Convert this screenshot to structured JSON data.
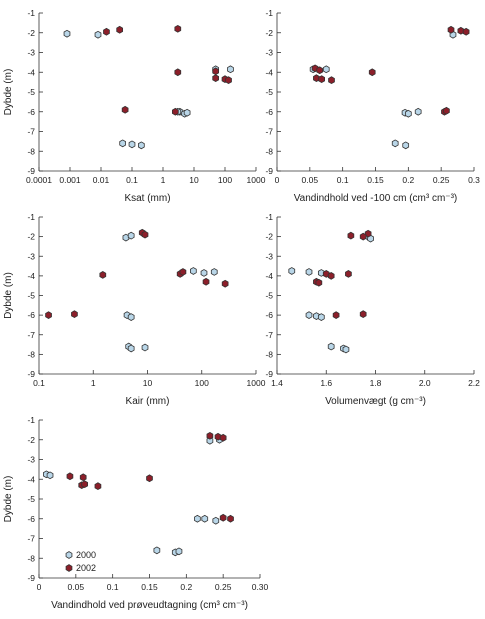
{
  "colors": {
    "2000": "#b9d6e8",
    "2002": "#8c1f2a",
    "outline": "#333333"
  },
  "chart_data": [
    {
      "type": "scatter",
      "xlabel": "Ksat (mm)",
      "ylabel": "Dybde (m)",
      "xscale": "log",
      "xlim": [
        0.0001,
        1000
      ],
      "ylim": [
        -9,
        -1
      ],
      "xtick_labels": [
        "0.0001",
        "0.001",
        "0.01",
        "0.1",
        "1",
        "10",
        "100",
        "1000"
      ],
      "ytick_labels": [
        "-1",
        "-2",
        "-3",
        "-4",
        "-5",
        "-6",
        "-7",
        "-8",
        "-9"
      ],
      "legend": false,
      "series": [
        {
          "name": "2000",
          "x": [
            0.0008,
            0.008,
            0.05,
            0.1,
            0.2,
            3.5,
            5,
            50,
            150,
            3,
            6
          ],
          "y": [
            -2.05,
            -2.1,
            -7.6,
            -7.65,
            -7.7,
            -6,
            -6.1,
            -3.85,
            -3.85,
            -6,
            -6.05
          ]
        },
        {
          "name": "2002",
          "x": [
            0.015,
            0.04,
            3,
            3,
            50,
            50,
            100,
            130,
            0.06,
            2.5
          ],
          "y": [
            -1.95,
            -1.85,
            -1.8,
            -4,
            -3.95,
            -4.3,
            -4.35,
            -4.4,
            -5.9,
            -6
          ]
        }
      ]
    },
    {
      "type": "scatter",
      "xlabel": "Vandindhold ved -100 cm (cm³ cm⁻³)",
      "ylabel": "",
      "xscale": "linear",
      "xlim": [
        0,
        0.3
      ],
      "ylim": [
        -9,
        -1
      ],
      "xtick_labels": [
        "0",
        "0.05",
        "0.1",
        "0.15",
        "0.2",
        "0.25",
        "0.3"
      ],
      "ytick_labels": [
        "-1",
        "-2",
        "-3",
        "-4",
        "-5",
        "-6",
        "-7",
        "-8",
        "-9"
      ],
      "legend": false,
      "series": [
        {
          "name": "2000",
          "x": [
            0.268,
            0.055,
            0.075,
            0.195,
            0.2,
            0.215,
            0.18,
            0.196
          ],
          "y": [
            -2.1,
            -3.85,
            -3.85,
            -6.05,
            -6.1,
            -6,
            -7.6,
            -7.7
          ]
        },
        {
          "name": "2002",
          "x": [
            0.265,
            0.28,
            0.288,
            0.058,
            0.065,
            0.06,
            0.068,
            0.083,
            0.145,
            0.255,
            0.258
          ],
          "y": [
            -1.85,
            -1.9,
            -1.95,
            -3.8,
            -3.9,
            -4.3,
            -4.35,
            -4.4,
            -4,
            -6,
            -5.95
          ]
        }
      ]
    },
    {
      "type": "scatter",
      "xlabel": "Kair (mm)",
      "ylabel": "Dybde (m)",
      "xscale": "log",
      "xlim": [
        0.1,
        1000
      ],
      "ylim": [
        -9,
        -1
      ],
      "xtick_labels": [
        "0.1",
        "1",
        "10",
        "100",
        "1000"
      ],
      "ytick_labels": [
        "-1",
        "-2",
        "-3",
        "-4",
        "-5",
        "-6",
        "-7",
        "-8",
        "-9"
      ],
      "legend": false,
      "series": [
        {
          "name": "2000",
          "x": [
            4,
            5,
            70,
            110,
            170,
            4.2,
            5,
            4.5,
            5,
            9
          ],
          "y": [
            -2.05,
            -1.95,
            -3.75,
            -3.85,
            -3.8,
            -6,
            -6.1,
            -7.6,
            -7.7,
            -7.65
          ]
        },
        {
          "name": "2002",
          "x": [
            8,
            9,
            40,
            45,
            1.5,
            120,
            270,
            0.15,
            0.45
          ],
          "y": [
            -1.8,
            -1.9,
            -3.9,
            -3.8,
            -3.95,
            -4.3,
            -4.4,
            -6,
            -5.95
          ]
        }
      ]
    },
    {
      "type": "scatter",
      "xlabel": "Volumenvægt (g cm⁻³)",
      "ylabel": "",
      "xscale": "linear",
      "xlim": [
        1.4,
        2.2
      ],
      "ylim": [
        -9,
        -1
      ],
      "xtick_labels": [
        "1.4",
        "1.6",
        "1.8",
        "2.0",
        "2.2"
      ],
      "ytick_labels": [
        "-1",
        "-2",
        "-3",
        "-4",
        "-5",
        "-6",
        "-7",
        "-8",
        "-9"
      ],
      "legend": false,
      "series": [
        {
          "name": "2000",
          "x": [
            1.77,
            1.78,
            1.46,
            1.53,
            1.58,
            1.53,
            1.56,
            1.58,
            1.62,
            1.67,
            1.68
          ],
          "y": [
            -2,
            -2.1,
            -3.75,
            -3.8,
            -3.85,
            -6,
            -6.05,
            -6.1,
            -7.6,
            -7.7,
            -7.75
          ]
        },
        {
          "name": "2002",
          "x": [
            1.7,
            1.77,
            1.75,
            1.56,
            1.57,
            1.6,
            1.62,
            1.69,
            1.64,
            1.75
          ],
          "y": [
            -1.95,
            -1.85,
            -2,
            -4.3,
            -4.35,
            -3.9,
            -4,
            -3.9,
            -6,
            -5.95
          ]
        }
      ]
    },
    {
      "type": "scatter",
      "xlabel": "Vandindhold ved prøveudtagning (cm³ cm⁻³)",
      "ylabel": "Dybde (m)",
      "xscale": "linear",
      "xlim": [
        0,
        0.3
      ],
      "ylim": [
        -9,
        -1
      ],
      "xtick_labels": [
        "0",
        "0.05",
        "0.1",
        "0.15",
        "0.2",
        "0.25",
        "0.30"
      ],
      "ytick_labels": [
        "-1",
        "-2",
        "-3",
        "-4",
        "-5",
        "-6",
        "-7",
        "-8",
        "-9"
      ],
      "legend": true,
      "legend_labels": [
        "2000",
        "2002"
      ],
      "legend_position": "bottom-left",
      "series": [
        {
          "name": "2000",
          "x": [
            0.232,
            0.245,
            0.01,
            0.015,
            0.215,
            0.225,
            0.24,
            0.16,
            0.185,
            0.19
          ],
          "y": [
            -2.05,
            -2,
            -3.75,
            -3.8,
            -6,
            -6,
            -6.1,
            -7.6,
            -7.7,
            -7.65
          ]
        },
        {
          "name": "2002",
          "x": [
            0.232,
            0.243,
            0.25,
            0.042,
            0.06,
            0.058,
            0.062,
            0.08,
            0.15,
            0.25,
            0.26
          ],
          "y": [
            -1.8,
            -1.85,
            -1.9,
            -3.85,
            -3.9,
            -4.3,
            -4.25,
            -4.35,
            -3.95,
            -5.95,
            -6
          ]
        }
      ]
    }
  ]
}
